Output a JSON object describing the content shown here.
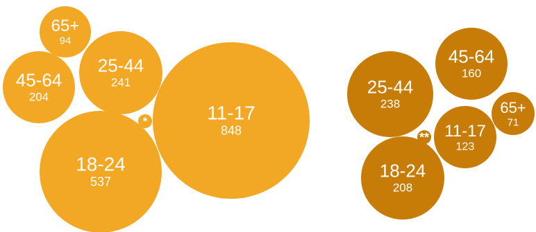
{
  "colors": {
    "group_1": "#F3A825",
    "group_2": "#C77C07",
    "text": "#ffffff"
  },
  "chart_data": [
    {
      "type": "bubble",
      "title": "",
      "color": "#F3A825",
      "bubbles": [
        {
          "label": "65+",
          "value": 94
        },
        {
          "label": "25-44",
          "value": 241
        },
        {
          "label": "45-64",
          "value": 204
        },
        {
          "label": "*",
          "value": null
        },
        {
          "label": "11-17",
          "value": 848
        },
        {
          "label": "18-24",
          "value": 537
        }
      ]
    },
    {
      "type": "bubble",
      "title": "",
      "color": "#C77C07",
      "bubbles": [
        {
          "label": "45-64",
          "value": 160
        },
        {
          "label": "25-44",
          "value": 238
        },
        {
          "label": "65+",
          "value": 71
        },
        {
          "label": "**",
          "value": null
        },
        {
          "label": "11-17",
          "value": 123
        },
        {
          "label": "18-24",
          "value": 208
        }
      ]
    }
  ]
}
